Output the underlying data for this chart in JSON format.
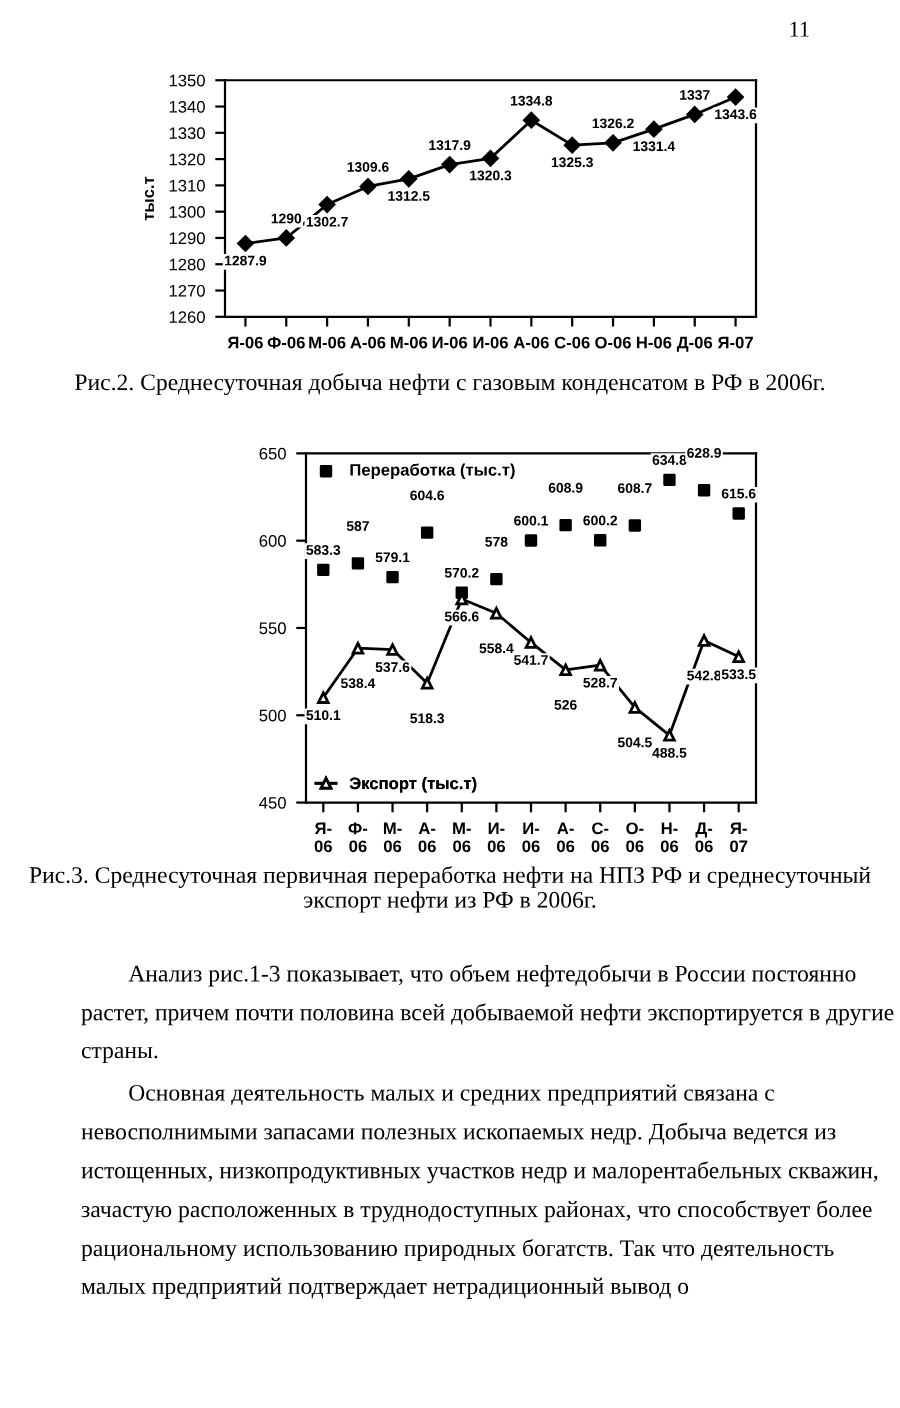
{
  "chart_data": [
    {
      "type": "line",
      "title": "Рис.2. Среднесуточная добыча нефти с газовым конденсатом в РФ в 2006г.",
      "ylabel": "тыс.т",
      "categories": [
        "Я-06",
        "Ф-06",
        "М-06",
        "А-06",
        "М-06",
        "И-06",
        "И-06",
        "А-06",
        "С-06",
        "О-06",
        "Н-06",
        "Д-06",
        "Я-07"
      ],
      "series": [
        {
          "color": "#000000",
          "values": [
            1287.9,
            1290,
            1302.7,
            1309.6,
            1312.5,
            1317.9,
            1320.3,
            1334.8,
            1325.3,
            1326.2,
            1331.4,
            1337,
            1343.6
          ]
        }
      ],
      "ylim": [
        1260,
        1350
      ],
      "yticks": [
        1260,
        1270,
        1280,
        1290,
        1300,
        1310,
        1320,
        1330,
        1340,
        1350
      ],
      "marker": "diamond",
      "data_labels": true,
      "grid": false,
      "annotations": [
        "11"
      ]
    },
    {
      "type": "line",
      "title": "Рис.3. Среднесуточная первичная переработка нефти на НПЗ РФ и среднесуточный экспорт нефти из РФ в 2006г.",
      "categories": [
        "Я-\n06",
        "Ф-\n06",
        "М-\n06",
        "А-\n06",
        "М-\n06",
        "И-\n06",
        "И-\n06",
        "А-\n06",
        "С-\n06",
        "О-\n06",
        "Н-\n06",
        "Д-\n06",
        "Я-\n07"
      ],
      "series": [
        {
          "name": "Переработка (тыс.т)",
          "type": "scatter",
          "marker": "square",
          "color": "#000000",
          "values": [
            583.3,
            587,
            579.1,
            604.6,
            570.2,
            578,
            600.1,
            608.9,
            600.2,
            608.7,
            634.8,
            628.9,
            615.6
          ]
        },
        {
          "name": "Экспорт (тыс.т)",
          "type": "line",
          "marker": "triangle",
          "color": "#000000",
          "values": [
            510.1,
            538.4,
            537.6,
            518.3,
            566.6,
            558.4,
            541.7,
            526,
            528.7,
            504.5,
            488.5,
            542.8,
            533.5
          ]
        }
      ],
      "ylim": [
        450,
        650
      ],
      "yticks": [
        450,
        500,
        550,
        600,
        650
      ],
      "data_labels": true,
      "grid": false,
      "legend": "left",
      "annotations": [
        "Анализ рис.1-3 показывает, что объем нефтедобычи в России постоянно растет, причем почти половина всей добываемой нефти экспортируется в другие страны.",
        "Основная деятельность малых и средних предприятий связана с невосполнимыми запасами полезных ископаемых недр. Добыча ведется из истощенных, низкопродуктивных участков недр и малорентабельных скважин, зачастую расположенных в труднодоступных районах, что способствует более рациональному использованию природных богатств. Так что деятельность малых предприятий подтверждает нетрадиционный вывод о"
      ]
    }
  ]
}
